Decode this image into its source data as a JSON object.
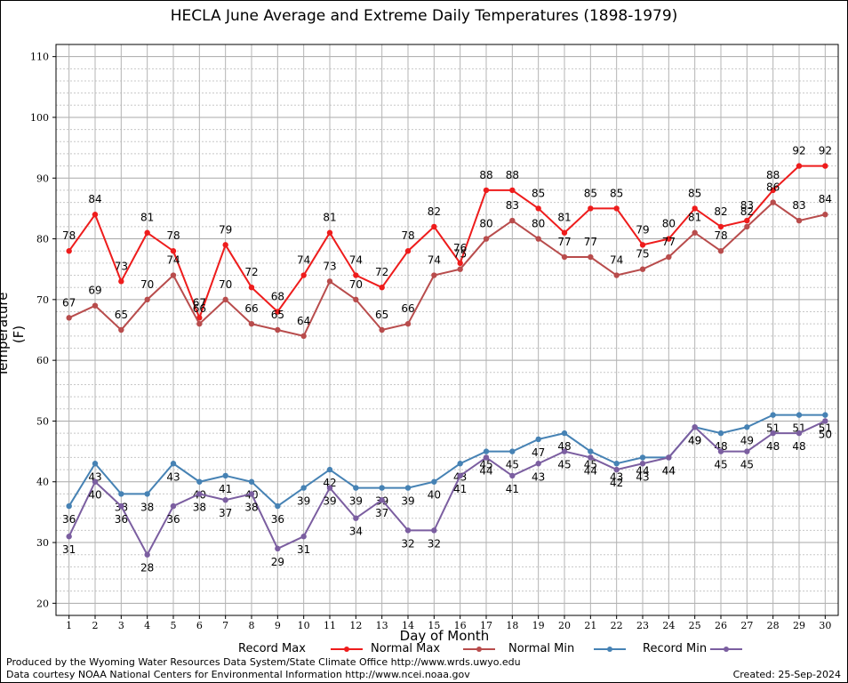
{
  "chart_data": {
    "type": "line",
    "title": "HECLA June Average and Extreme Daily Temperatures (1898-1979)",
    "xlabel": "Day of Month",
    "ylabel": "Temperature (F)",
    "x": [
      1,
      2,
      3,
      4,
      5,
      6,
      7,
      8,
      9,
      10,
      11,
      12,
      13,
      14,
      15,
      16,
      17,
      18,
      19,
      20,
      21,
      22,
      23,
      24,
      25,
      26,
      27,
      28,
      29,
      30
    ],
    "xlim": [
      0.5,
      30.5
    ],
    "ylim": [
      18,
      112
    ],
    "yticks": [
      20,
      30,
      40,
      50,
      60,
      70,
      80,
      90,
      100,
      110
    ],
    "grid": true,
    "series": [
      {
        "name": "Record Max",
        "color": "#ee1c1c",
        "values": [
          78,
          84,
          73,
          81,
          78,
          67,
          79,
          72,
          68,
          74,
          81,
          74,
          72,
          78,
          82,
          76,
          88,
          88,
          85,
          81,
          85,
          85,
          79,
          80,
          85,
          82,
          83,
          88,
          92,
          92
        ]
      },
      {
        "name": "Normal Max",
        "color": "#b84c4c",
        "values": [
          67,
          69,
          65,
          70,
          74,
          66,
          70,
          66,
          65,
          64,
          73,
          70,
          65,
          66,
          74,
          75,
          80,
          83,
          80,
          77,
          77,
          74,
          75,
          77,
          81,
          78,
          82,
          86,
          83,
          84
        ]
      },
      {
        "name": "Normal Min",
        "color": "#4682b4",
        "values": [
          36,
          43,
          38,
          38,
          43,
          40,
          41,
          40,
          36,
          39,
          42,
          39,
          39,
          39,
          40,
          43,
          45,
          45,
          47,
          48,
          45,
          43,
          44,
          44,
          49,
          48,
          49,
          51,
          51,
          51
        ]
      },
      {
        "name": "Record Min",
        "color": "#7b5ea0",
        "values": [
          31,
          40,
          36,
          28,
          36,
          38,
          37,
          38,
          29,
          31,
          39,
          34,
          37,
          32,
          32,
          41,
          44,
          41,
          43,
          45,
          44,
          42,
          43,
          44,
          49,
          45,
          45,
          48,
          48,
          50
        ]
      }
    ]
  },
  "credits": {
    "line1": "Produced by the Wyoming Water Resources Data System/State Climate Office http://www.wrds.uwyo.edu",
    "line2": "Data courtesy NOAA National Centers for Environmental Information http://www.ncei.noaa.gov",
    "created": "Created:  25-Sep-2024"
  }
}
